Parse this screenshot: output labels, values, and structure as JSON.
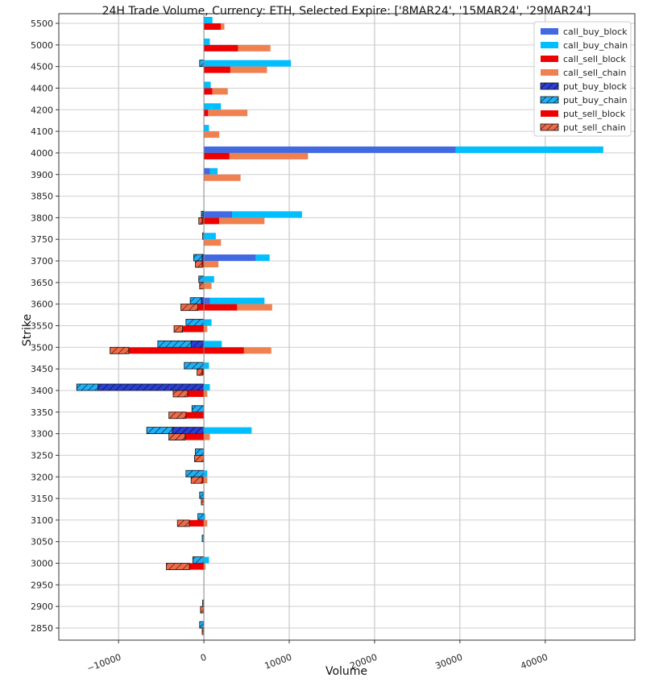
{
  "chart_data": {
    "type": "bar",
    "orientation": "horizontal",
    "stacked": true,
    "title": "24H Trade Volume, Currency: ETH, Selected Expire: ['8MAR24', '15MAR24', '29MAR24']",
    "xlabel": "Volume",
    "ylabel": "Strike",
    "xlim": [
      -17000,
      50500
    ],
    "x_ticks": [
      -10000,
      0,
      10000,
      20000,
      30000,
      40000
    ],
    "x_tick_labels": [
      "−10000",
      "0",
      "10000",
      "20000",
      "30000",
      "40000"
    ],
    "grid": true,
    "legend_position": "top-right",
    "categories": [
      "2850",
      "2900",
      "2950",
      "3000",
      "3050",
      "3100",
      "3150",
      "3200",
      "3250",
      "3300",
      "3350",
      "3400",
      "3450",
      "3500",
      "3550",
      "3600",
      "3650",
      "3700",
      "3750",
      "3800",
      "3850",
      "3900",
      "4000",
      "4100",
      "4200",
      "4400",
      "4500",
      "5000",
      "5500"
    ],
    "series": [
      {
        "name": "call_buy_block",
        "group": "buy",
        "color": "#4169E1",
        "hatch": false,
        "values": [
          0,
          0,
          0,
          0,
          0,
          0,
          0,
          0,
          0,
          0,
          0,
          0,
          0,
          0,
          0,
          700,
          0,
          6100,
          0,
          3300,
          0,
          700,
          29500,
          0,
          0,
          0,
          0,
          0,
          0
        ]
      },
      {
        "name": "call_buy_chain",
        "group": "buy",
        "color": "#00BFFF",
        "hatch": false,
        "values": [
          0,
          0,
          0,
          600,
          0,
          150,
          0,
          400,
          0,
          5600,
          0,
          700,
          600,
          2100,
          900,
          6400,
          1200,
          1600,
          1400,
          8200,
          0,
          900,
          17300,
          600,
          2000,
          800,
          10200,
          700,
          1000
        ]
      },
      {
        "name": "call_sell_block",
        "group": "sell",
        "color": "#EE0000",
        "hatch": false,
        "values": [
          0,
          0,
          0,
          0,
          0,
          0,
          0,
          0,
          0,
          0,
          0,
          0,
          0,
          4700,
          0,
          3900,
          0,
          0,
          0,
          1800,
          0,
          0,
          3000,
          0,
          500,
          1000,
          3100,
          4000,
          2000
        ]
      },
      {
        "name": "call_sell_chain",
        "group": "sell",
        "color": "#F08050",
        "hatch": false,
        "values": [
          0,
          0,
          0,
          200,
          0,
          400,
          0,
          400,
          0,
          700,
          0,
          400,
          0,
          3200,
          400,
          4100,
          900,
          1700,
          2000,
          5300,
          0,
          4300,
          9200,
          1800,
          4600,
          1800,
          4300,
          3800,
          400
        ]
      },
      {
        "name": "put_buy_block",
        "group": "buy",
        "color": "#2A3FD8",
        "hatch": true,
        "values": [
          0,
          0,
          0,
          0,
          0,
          0,
          0,
          0,
          0,
          -3700,
          0,
          -12400,
          0,
          -1500,
          0,
          -300,
          0,
          -200,
          0,
          -100,
          0,
          0,
          0,
          0,
          0,
          0,
          0,
          0,
          0
        ]
      },
      {
        "name": "put_buy_chain",
        "group": "buy",
        "color": "#1EB0F8",
        "hatch": true,
        "values": [
          -500,
          -150,
          0,
          -1300,
          -200,
          -700,
          -500,
          -2100,
          -1000,
          -3000,
          -1400,
          -2500,
          -2300,
          -3900,
          -2100,
          -1300,
          -600,
          -1000,
          -150,
          -200,
          0,
          0,
          0,
          0,
          0,
          0,
          -500,
          0,
          0
        ]
      },
      {
        "name": "put_sell_block",
        "group": "sell",
        "color": "#EE0000",
        "hatch": false,
        "values": [
          0,
          0,
          0,
          -1700,
          0,
          -1700,
          0,
          -200,
          0,
          -2200,
          -2100,
          -1900,
          -200,
          -8800,
          -2500,
          -700,
          0,
          -200,
          0,
          -200,
          0,
          0,
          0,
          0,
          0,
          0,
          0,
          0,
          0
        ]
      },
      {
        "name": "put_sell_chain",
        "group": "sell",
        "color": "#F06A48",
        "hatch": true,
        "values": [
          -200,
          -400,
          0,
          -2700,
          0,
          -1400,
          -300,
          -1300,
          -1100,
          -1900,
          -2000,
          -1700,
          -600,
          -2200,
          -1000,
          -2000,
          -500,
          -800,
          0,
          -400,
          0,
          0,
          0,
          0,
          0,
          0,
          0,
          0,
          0
        ]
      }
    ]
  }
}
